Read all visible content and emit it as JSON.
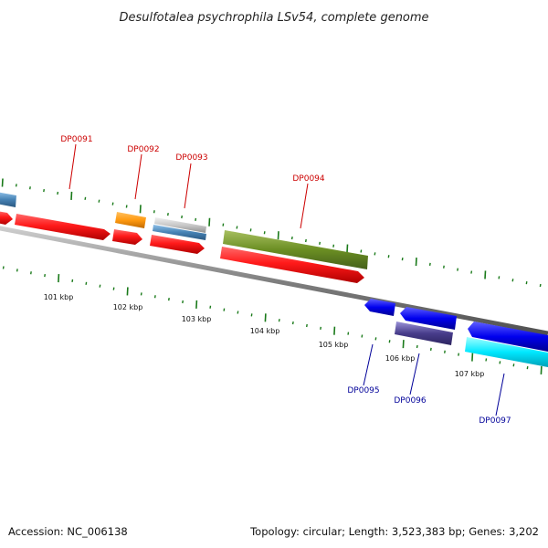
{
  "title": "Desulfotalea psychrophila LSv54, complete genome",
  "footer": {
    "accession": "Accession: NC_006138",
    "topology": "Topology: circular; Length: 3,523,383 bp; Genes: 3,202"
  },
  "colors": {
    "label_forward": "#cc0000",
    "label_reverse": "#000099",
    "tick": "#1a7a1a",
    "backbone": "#7a7a7a"
  },
  "tick_labels": [
    "101 kbp",
    "102 kbp",
    "103 kbp",
    "104 kbp",
    "105 kbp",
    "106 kbp",
    "107 kbp"
  ],
  "genes": [
    {
      "label": "DP0091",
      "strand": "forward",
      "color": "red"
    },
    {
      "label": "DP0092",
      "strand": "forward",
      "color": "orange"
    },
    {
      "label": "DP0093",
      "strand": "forward",
      "color": "silver/steelblue"
    },
    {
      "label": "DP0094",
      "strand": "forward",
      "color": "olive"
    },
    {
      "label": "DP0095",
      "strand": "reverse",
      "color": "blue"
    },
    {
      "label": "DP0096",
      "strand": "reverse",
      "color": "slateblue"
    },
    {
      "label": "DP0097",
      "strand": "reverse",
      "color": "cyan"
    }
  ]
}
